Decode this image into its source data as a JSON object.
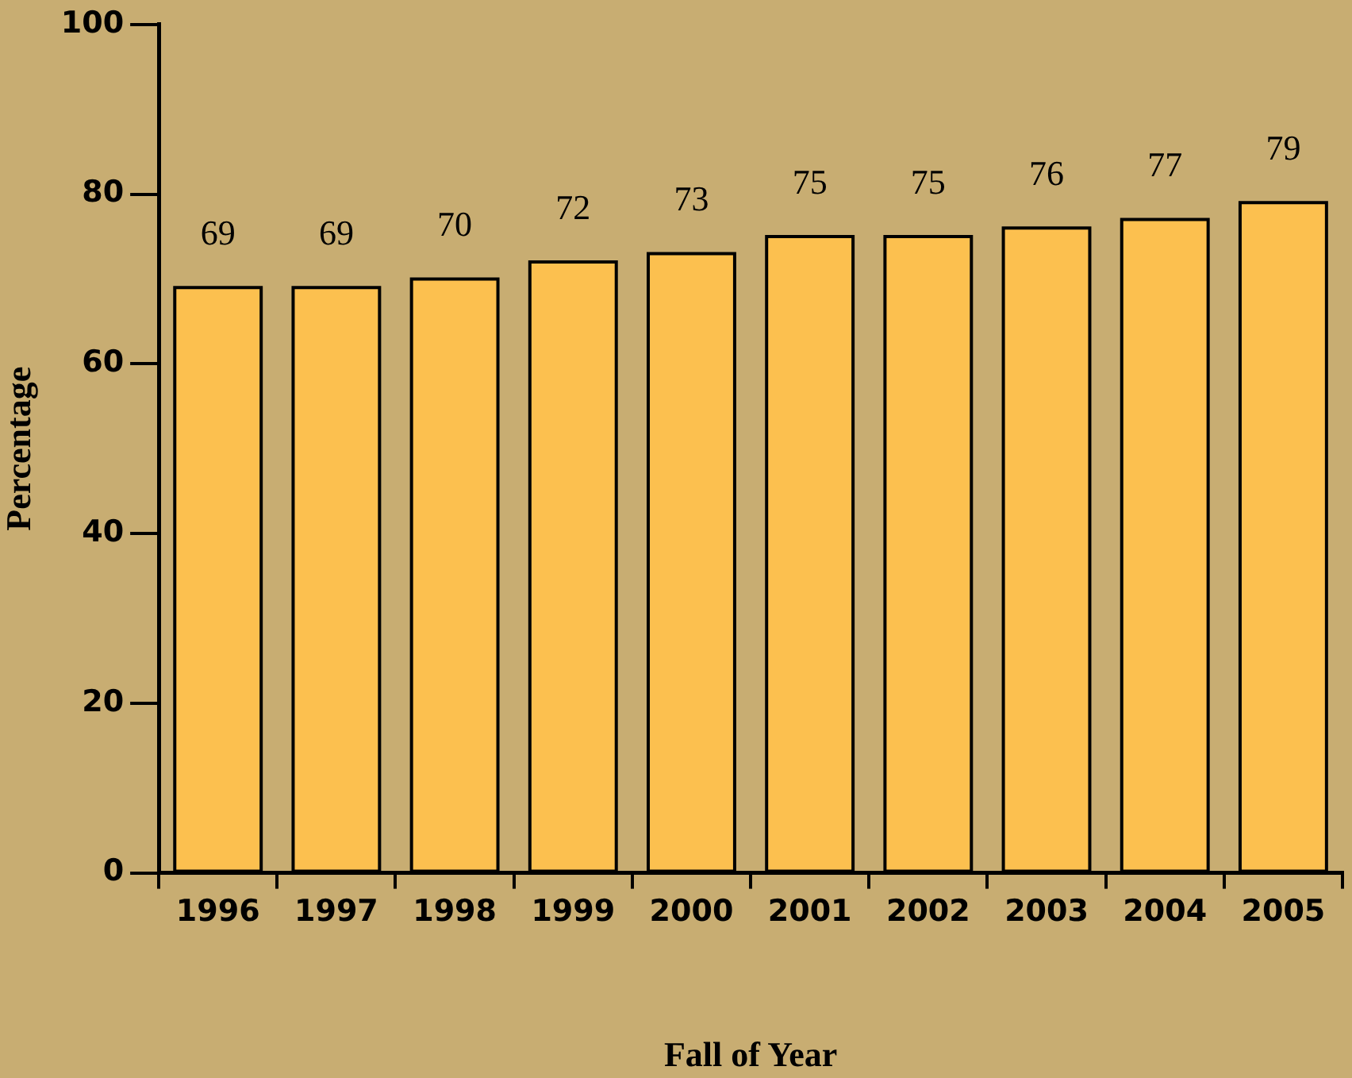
{
  "chart_data": {
    "type": "bar",
    "xlabel": "Fall of Year",
    "ylabel": "Percentage",
    "categories": [
      "1996",
      "1997",
      "1998",
      "1999",
      "2000",
      "2001",
      "2002",
      "2003",
      "2004",
      "2005"
    ],
    "values": [
      69,
      69,
      70,
      72,
      73,
      75,
      75,
      76,
      77,
      79
    ],
    "color": "#fcc04f",
    "ylim": [
      0,
      100
    ],
    "yticks": [
      0,
      20,
      40,
      60,
      80,
      100
    ],
    "grid": false,
    "legend": false,
    "data_labels": true
  }
}
